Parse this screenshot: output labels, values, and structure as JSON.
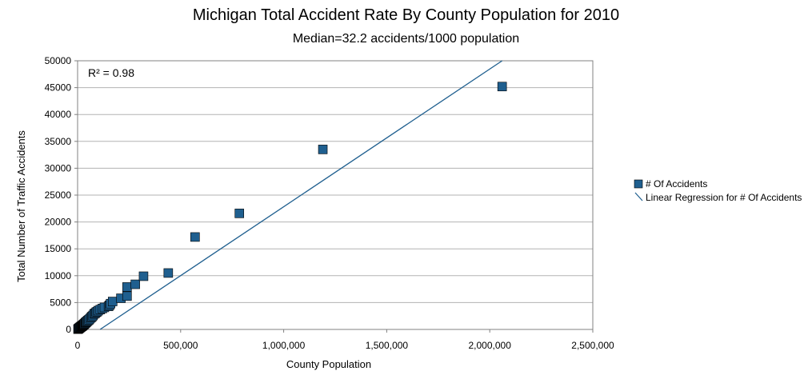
{
  "chart_data": {
    "type": "scatter",
    "title": "Michigan Total Accident Rate By County Population for 2010",
    "subtitle": "Median=32.2 accidents/1000 population",
    "xlabel": "County Population",
    "ylabel": "Total Number of Traffic Accidents",
    "xlim": [
      0,
      2500000
    ],
    "ylim": [
      0,
      50000
    ],
    "x_ticks": [
      0,
      500000,
      1000000,
      1500000,
      2000000,
      2500000
    ],
    "x_tick_labels": [
      "0",
      "500,000",
      "1,000,000",
      "1,500,000",
      "2,000,000",
      "2,500,000"
    ],
    "y_ticks": [
      0,
      5000,
      10000,
      15000,
      20000,
      25000,
      30000,
      35000,
      40000,
      45000,
      50000
    ],
    "y_tick_labels": [
      "0",
      "5000",
      "10000",
      "15000",
      "20000",
      "25000",
      "30000",
      "35000",
      "40000",
      "45000",
      "50000"
    ],
    "grid": true,
    "legend_position": "right",
    "annotation": "R² = 0.98",
    "series": [
      {
        "name": "# Of Accidents",
        "color": "#1f5f8f",
        "marker": "square",
        "points": [
          [
            2000,
            50
          ],
          [
            4000,
            120
          ],
          [
            6000,
            180
          ],
          [
            8000,
            250
          ],
          [
            10000,
            300
          ],
          [
            12000,
            380
          ],
          [
            14000,
            420
          ],
          [
            16000,
            500
          ],
          [
            18000,
            550
          ],
          [
            20000,
            600
          ],
          [
            22000,
            650
          ],
          [
            24000,
            700
          ],
          [
            26000,
            780
          ],
          [
            28000,
            850
          ],
          [
            30000,
            900
          ],
          [
            32000,
            1000
          ],
          [
            35000,
            1100
          ],
          [
            38000,
            1200
          ],
          [
            40000,
            1300
          ],
          [
            43000,
            1400
          ],
          [
            46000,
            1500
          ],
          [
            50000,
            1650
          ],
          [
            55000,
            1800
          ],
          [
            60000,
            2000
          ],
          [
            65000,
            2200
          ],
          [
            70000,
            2400
          ],
          [
            75000,
            2600
          ],
          [
            80000,
            2900
          ],
          [
            85000,
            3000
          ],
          [
            90000,
            3200
          ],
          [
            95000,
            3300
          ],
          [
            100000,
            3500
          ],
          [
            110000,
            3700
          ],
          [
            120000,
            3900
          ],
          [
            130000,
            4100
          ],
          [
            150000,
            4300
          ],
          [
            155000,
            4500
          ],
          [
            160000,
            4800
          ],
          [
            170000,
            5200
          ],
          [
            210000,
            5800
          ],
          [
            240000,
            6200
          ],
          [
            240000,
            7900
          ],
          [
            280000,
            8400
          ],
          [
            320000,
            9900
          ],
          [
            440000,
            10500
          ],
          [
            570000,
            17200
          ],
          [
            785000,
            21600
          ],
          [
            1190000,
            33500
          ],
          [
            2060000,
            45200
          ]
        ]
      },
      {
        "name": "Linear Regression for # Of Accidents",
        "color": "#1f5f8f",
        "type": "line",
        "points": [
          [
            0,
            -2800
          ],
          [
            2060000,
            50000
          ]
        ]
      }
    ]
  }
}
